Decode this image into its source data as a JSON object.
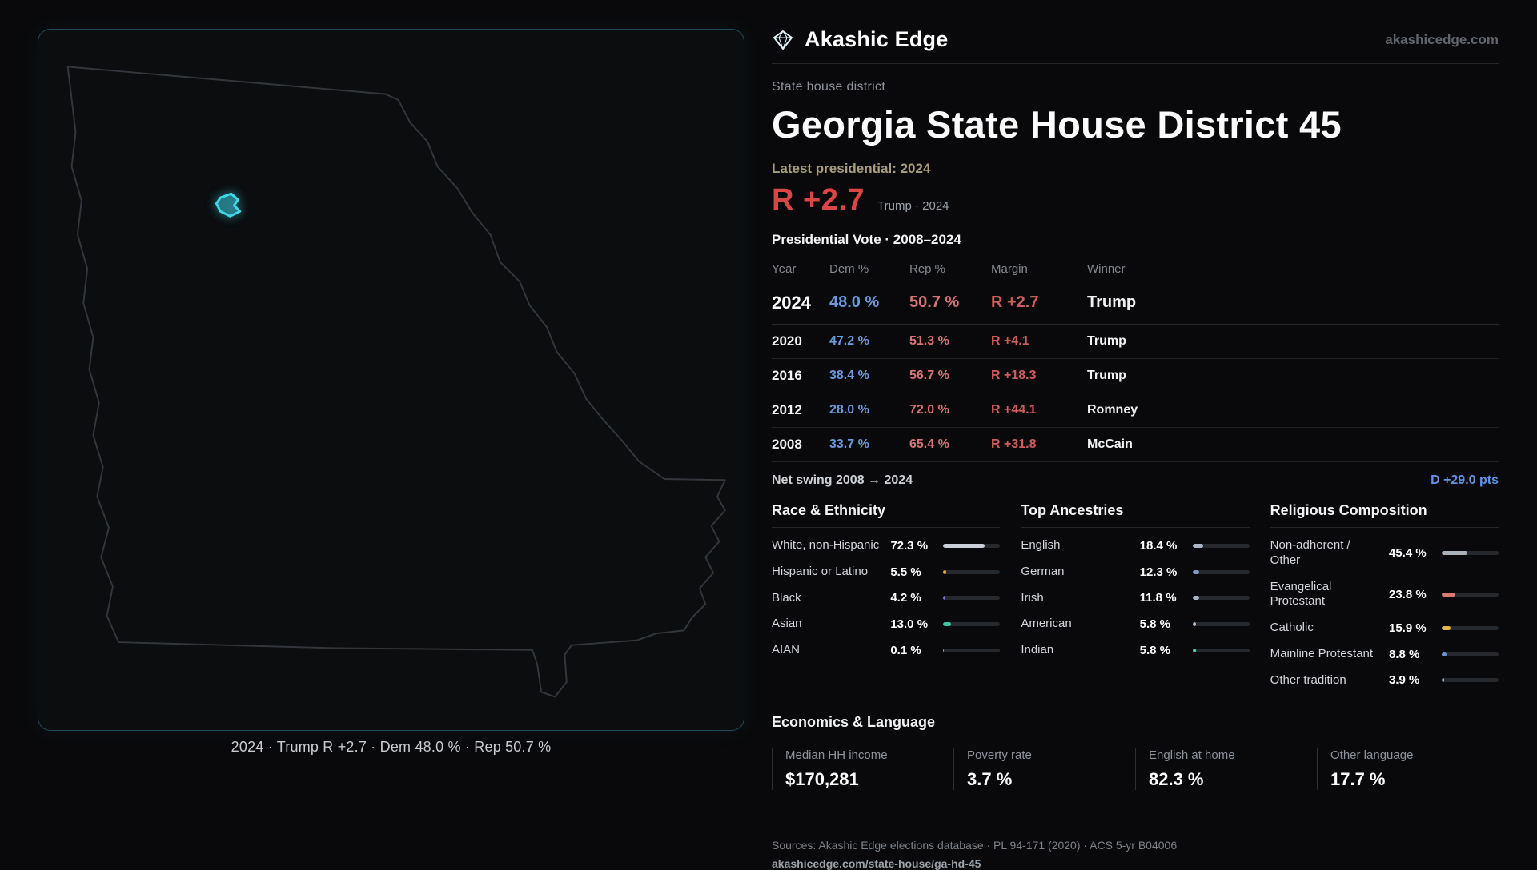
{
  "brand": {
    "name": "Akashic Edge",
    "site": "akashicedge.com"
  },
  "page": {
    "kicker": "State house district",
    "title": "Georgia State House District 45",
    "latest": "Latest presidential: 2024",
    "headline_margin": "R +2.7",
    "headline_sub": "Trump · 2024"
  },
  "map": {
    "caption": "2024 · Trump R +2.7 · Dem 48.0 % · Rep 50.7 %",
    "district_color": "#3fd9ec",
    "outline_color": "#33373b"
  },
  "vote_table": {
    "title": "Presidential Vote · 2008–2024",
    "columns": [
      "Year",
      "Dem %",
      "Rep %",
      "Margin",
      "Winner"
    ],
    "rows": [
      {
        "year": "2024",
        "dem": "48.0 %",
        "rep": "50.7 %",
        "margin": "R +2.7",
        "winner": "Trump"
      },
      {
        "year": "2020",
        "dem": "47.2 %",
        "rep": "51.3 %",
        "margin": "R +4.1",
        "winner": "Trump"
      },
      {
        "year": "2016",
        "dem": "38.4 %",
        "rep": "56.7 %",
        "margin": "R +18.3",
        "winner": "Trump"
      },
      {
        "year": "2012",
        "dem": "28.0 %",
        "rep": "72.0 %",
        "margin": "R +44.1",
        "winner": "Romney"
      },
      {
        "year": "2008",
        "dem": "33.7 %",
        "rep": "65.4 %",
        "margin": "R +31.8",
        "winner": "McCain"
      }
    ],
    "net_swing_label": "Net swing 2008 → 2024",
    "net_swing_value": "D +29.0 pts"
  },
  "demographics": [
    {
      "title": "Race & Ethnicity",
      "rows": [
        {
          "label": "White, non-Hispanic",
          "value": "72.3 %",
          "pct": 72.3,
          "color": "#c9ced8"
        },
        {
          "label": "Hispanic or Latino",
          "value": "5.5 %",
          "pct": 5.5,
          "color": "#e0a94e"
        },
        {
          "label": "Black",
          "value": "4.2 %",
          "pct": 4.2,
          "color": "#7d6fe0"
        },
        {
          "label": "Asian",
          "value": "13.0 %",
          "pct": 13.0,
          "color": "#3fc9a2"
        },
        {
          "label": "AIAN",
          "value": "0.1 %",
          "pct": 0.1,
          "color": "#9aa2ab"
        }
      ]
    },
    {
      "title": "Top Ancestries",
      "rows": [
        {
          "label": "English",
          "value": "18.4 %",
          "pct": 18.4,
          "color": "#a9b5c5"
        },
        {
          "label": "German",
          "value": "12.3 %",
          "pct": 12.3,
          "color": "#7f97c9"
        },
        {
          "label": "Irish",
          "value": "11.8 %",
          "pct": 11.8,
          "color": "#a9b5c5"
        },
        {
          "label": "American",
          "value": "5.8 %",
          "pct": 5.8,
          "color": "#a9b5c5"
        },
        {
          "label": "Indian",
          "value": "5.8 %",
          "pct": 5.8,
          "color": "#4cc5ae"
        }
      ]
    },
    {
      "title": "Religious Composition",
      "rows": [
        {
          "label": "Non-adherent / Other",
          "value": "45.4 %",
          "pct": 45.4,
          "color": "#a9b1bb"
        },
        {
          "label": "Evangelical Protestant",
          "value": "23.8 %",
          "pct": 23.8,
          "color": "#dd7a6e"
        },
        {
          "label": "Catholic",
          "value": "15.9 %",
          "pct": 15.9,
          "color": "#e3b34c"
        },
        {
          "label": "Mainline Protestant",
          "value": "8.8 %",
          "pct": 8.8,
          "color": "#6a93dd"
        },
        {
          "label": "Other tradition",
          "value": "3.9 %",
          "pct": 3.9,
          "color": "#9aa2ab"
        }
      ]
    }
  ],
  "economics": {
    "title": "Economics & Language",
    "stats": [
      {
        "label": "Median HH income",
        "value": "$170,281"
      },
      {
        "label": "Poverty rate",
        "value": "3.7 %"
      },
      {
        "label": "English at home",
        "value": "82.3 %"
      },
      {
        "label": "Other language",
        "value": "17.7 %"
      }
    ]
  },
  "footer": {
    "sources": "Sources: Akashic Edge elections database · PL 94-171 (2020) · ACS 5-yr B04006",
    "link": "akashicedge.com/state-house/ga-hd-45"
  }
}
